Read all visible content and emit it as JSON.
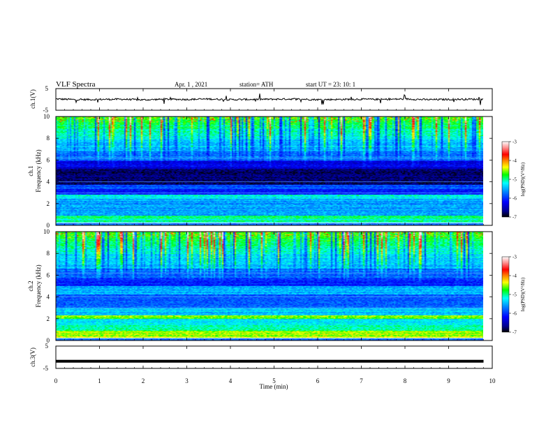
{
  "header": {
    "title": "VLF  Spectra",
    "date": "Apr. 1  , 2021",
    "station": "station= ATH",
    "start": "start  UT  =    23: 10: 1"
  },
  "colors": {
    "trace": "#000000",
    "axes": "#000000",
    "background": "#ffffff",
    "colormap": [
      "#000000",
      "#000090",
      "#0000ff",
      "#0080ff",
      "#00ffff",
      "#00ff00",
      "#ffff00",
      "#ff8000",
      "#ff0000",
      "#ff9090",
      "#ffffff"
    ]
  },
  "chart_data": [
    {
      "type": "line",
      "panel": "ch1-waveform",
      "ylabel": "ch.1(V)",
      "ylim": [
        -5,
        5
      ],
      "yticks": [
        "5",
        "-5"
      ],
      "xlim": [
        0,
        10
      ],
      "x": [
        0,
        0.5,
        1,
        1.5,
        2,
        2.5,
        3,
        3.5,
        4,
        4.5,
        5,
        5.5,
        6,
        6.5,
        7,
        7.5,
        8,
        8.5,
        9,
        9.5,
        9.8
      ],
      "y": [
        0.2,
        -0.1,
        0.0,
        0.1,
        -0.2,
        0.1,
        0.0,
        0.2,
        -0.1,
        0.0,
        0.1,
        0.2,
        -0.1,
        0.0,
        0.1,
        0.0,
        0.2,
        -0.1,
        0.0,
        0.1,
        0.0
      ]
    },
    {
      "type": "heatmap",
      "panel": "ch1-spectrogram",
      "ylabel": "ch.1\nFrequency  (kHz)",
      "ylim": [
        0,
        10
      ],
      "yticks": [
        "0",
        "2",
        "4",
        "6",
        "8",
        "10"
      ],
      "xlim": [
        0,
        10
      ],
      "data_end_min": 9.8,
      "colorbar": {
        "label": "log(PSD)(V²/Hz)",
        "range": [
          -7,
          -3
        ],
        "ticks": [
          "-3",
          "-4",
          "-5",
          "-6",
          "-7"
        ]
      }
    },
    {
      "type": "heatmap",
      "panel": "ch2-spectrogram",
      "ylabel": "ch.2\nFrequency  (kHz)",
      "ylim": [
        0,
        10
      ],
      "yticks": [
        "0",
        "2",
        "4",
        "6",
        "8",
        "10"
      ],
      "xlim": [
        0,
        10
      ],
      "data_end_min": 9.8,
      "colorbar": {
        "label": "log(PSD)(V²/Hz)",
        "range": [
          -7,
          -3
        ],
        "ticks": [
          "-3",
          "-4",
          "-5",
          "-6",
          "-7"
        ]
      }
    },
    {
      "type": "line",
      "panel": "ch3-waveform",
      "ylabel": "ch.3(V)",
      "ylim": [
        -5,
        5
      ],
      "yticks": [
        "5",
        "-5"
      ],
      "xlim": [
        0,
        10
      ],
      "x": [
        0,
        9.8
      ],
      "y": [
        -1.8,
        -1.8
      ]
    }
  ],
  "xaxis": {
    "label": "Time  (min)",
    "ticks": [
      "0",
      "1",
      "2",
      "3",
      "4",
      "5",
      "6",
      "7",
      "8",
      "9",
      "10"
    ]
  }
}
